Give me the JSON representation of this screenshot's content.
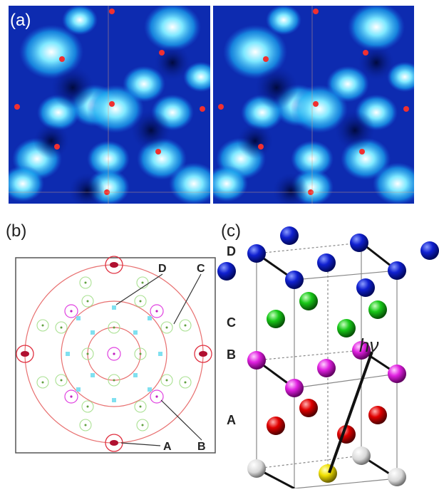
{
  "panels": {
    "a": {
      "label": "(a)"
    },
    "b": {
      "label": "(b)",
      "annotations": [
        "D",
        "C",
        "A",
        "B"
      ]
    },
    "c": {
      "label": "(c)",
      "layers": [
        "D",
        "C",
        "B",
        "A"
      ],
      "photon": "hν"
    }
  }
}
